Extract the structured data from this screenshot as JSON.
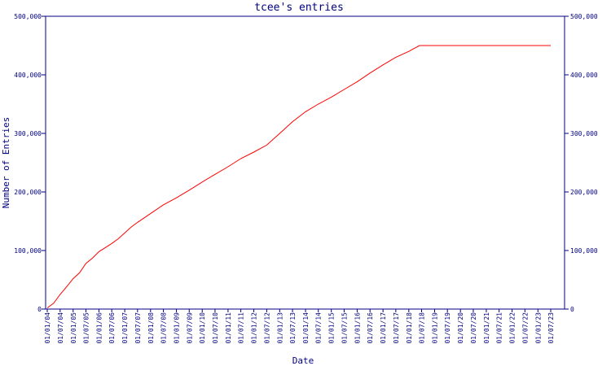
{
  "chart_data": {
    "type": "line",
    "title": "tcee's entries",
    "xlabel": "Date",
    "ylabel": "Number of Entries",
    "ylim": [
      0,
      500000
    ],
    "y_ticks": [
      0,
      100000,
      200000,
      300000,
      400000,
      500000
    ],
    "y_tick_labels": [
      "0",
      "100,000",
      "200,000",
      "300,000",
      "400,000",
      "500,000"
    ],
    "x_tick_labels": [
      "01/01/04",
      "01/07/04",
      "01/01/05",
      "01/07/05",
      "01/01/06",
      "01/07/06",
      "01/01/07",
      "01/07/07",
      "01/01/08",
      "01/07/08",
      "01/01/09",
      "01/07/09",
      "01/01/10",
      "01/07/10",
      "01/01/11",
      "01/07/11",
      "01/01/12",
      "01/07/12",
      "01/01/13",
      "01/07/13",
      "01/01/14",
      "01/07/14",
      "01/01/15",
      "01/07/15",
      "01/01/16",
      "01/07/16",
      "01/01/17",
      "01/07/17",
      "01/01/18",
      "01/07/18",
      "01/01/19",
      "01/07/19",
      "01/01/20",
      "01/07/20",
      "01/01/21",
      "01/07/21",
      "01/01/22",
      "01/07/22",
      "01/01/23",
      "01/07/23"
    ],
    "grid": false,
    "line_color": "#ff0000",
    "axis_color": "#000080",
    "series": [
      {
        "x": [
          "2004-01-01",
          "2004-04-01",
          "2004-07-01",
          "2004-10-01",
          "2005-01-01",
          "2005-04-01",
          "2005-07-01",
          "2005-10-01",
          "2006-01-01",
          "2006-04-01",
          "2006-07-01",
          "2006-10-01",
          "2007-01-01",
          "2007-04-01",
          "2007-07-01",
          "2008-01-01",
          "2008-07-01",
          "2009-01-01",
          "2009-07-01",
          "2010-01-01",
          "2010-07-01",
          "2011-01-01",
          "2011-07-01",
          "2012-01-01",
          "2012-07-01",
          "2013-01-01",
          "2013-07-01",
          "2014-01-01",
          "2014-07-01",
          "2015-01-01",
          "2015-07-01",
          "2016-01-01",
          "2016-07-01",
          "2017-01-01",
          "2017-07-01",
          "2018-01-01",
          "2018-04-01",
          "2018-06-01",
          "2018-07-01",
          "2019-01-01",
          "2020-01-01",
          "2021-01-01",
          "2022-01-01",
          "2023-01-01",
          "2023-07-01"
        ],
        "y": [
          2000,
          10000,
          25000,
          38000,
          52000,
          62000,
          78000,
          87000,
          98000,
          105000,
          112000,
          120000,
          130000,
          140000,
          148000,
          163000,
          178000,
          190000,
          203000,
          217000,
          230000,
          243000,
          257000,
          268000,
          280000,
          300000,
          320000,
          337000,
          350000,
          362000,
          375000,
          388000,
          403000,
          417000,
          430000,
          440000,
          446000,
          450000,
          450000,
          450000,
          450000,
          450000,
          450000,
          450000,
          450000
        ]
      }
    ]
  }
}
